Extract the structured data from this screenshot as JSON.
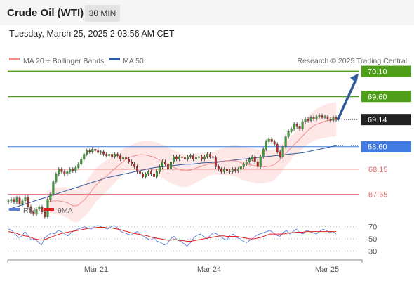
{
  "header": {
    "title": "Crude Oil (WTI)",
    "timeframe": "30 MIN"
  },
  "datetime": "Tuesday, March 25, 2025 2:03:56 AM CET",
  "legend": [
    {
      "label": "MA 20 + Bollinger Bands",
      "color": "#f08c8c"
    },
    {
      "label": "MA 50",
      "color": "#2f5a9e"
    }
  ],
  "rsi_legend": [
    {
      "label": "RSI",
      "color": "#5b7fd9"
    },
    {
      "label": "9MA",
      "color": "#e02020"
    }
  ],
  "copyright": "Research © 2025 Trading Central",
  "colors": {
    "target": "#4f9e1a",
    "pivot": "#3f7be0",
    "support": "#e26b6b",
    "last": "#222222",
    "arrow": "#2f5a9e"
  },
  "chart_data": {
    "type": "candlestick",
    "instrument": "Crude Oil (WTI)",
    "interval": "30 MIN",
    "ylim": [
      67.35,
      70.15
    ],
    "x_ticks": [
      "Mar 21",
      "Mar 24",
      "Mar 25"
    ],
    "price_close": [
      67.52,
      67.55,
      67.5,
      67.58,
      67.45,
      67.52,
      67.6,
      67.4,
      67.3,
      67.25,
      67.35,
      67.4,
      67.3,
      67.2,
      67.55,
      67.65,
      67.9,
      68.05,
      68.15,
      68.1,
      68.05,
      68.1,
      68.15,
      68.12,
      68.18,
      68.25,
      68.35,
      68.45,
      68.52,
      68.5,
      68.55,
      68.52,
      68.48,
      68.5,
      68.45,
      68.42,
      68.45,
      68.4,
      68.45,
      68.42,
      68.35,
      68.38,
      68.35,
      68.3,
      68.25,
      68.2,
      68.1,
      68.05,
      68.0,
      68.05,
      68.1,
      68.05,
      68.0,
      68.1,
      68.2,
      68.3,
      68.25,
      68.15,
      68.3,
      68.4,
      68.35,
      68.4,
      68.38,
      68.35,
      68.4,
      68.42,
      68.35,
      68.38,
      68.4,
      68.35,
      68.4,
      68.45,
      68.4,
      68.38,
      68.2,
      68.15,
      68.1,
      68.15,
      68.12,
      68.1,
      68.15,
      68.12,
      68.15,
      68.2,
      68.25,
      68.3,
      68.35,
      68.4,
      68.3,
      68.2,
      68.4,
      68.55,
      68.7,
      68.75,
      68.7,
      68.65,
      68.5,
      68.4,
      68.6,
      68.8,
      68.9,
      68.95,
      69.05,
      69.0,
      68.95,
      69.1,
      69.15,
      69.12,
      69.18,
      69.15,
      69.2,
      69.22,
      69.18,
      69.2,
      69.15,
      69.12,
      69.18,
      69.14
    ],
    "price_ma20": [
      67.5,
      67.51,
      67.52,
      67.52,
      67.52,
      67.51,
      67.5,
      67.48,
      67.45,
      67.42,
      67.42,
      67.45,
      67.5,
      67.55,
      67.62,
      67.7,
      67.78,
      67.85,
      67.9,
      67.95,
      68.0,
      68.05,
      68.1,
      68.15,
      68.2,
      68.25,
      68.3,
      68.35,
      68.38,
      68.4,
      68.42,
      68.43,
      68.44,
      68.44,
      68.43,
      68.42,
      68.4,
      68.38,
      68.35,
      68.32,
      68.29,
      68.26,
      68.23,
      68.2,
      68.17,
      68.15,
      68.13,
      68.12,
      68.12,
      68.13,
      68.15,
      68.17,
      68.19,
      68.21,
      68.23,
      68.25,
      68.26,
      68.27,
      68.28,
      68.29,
      68.3,
      68.31,
      68.32,
      68.32,
      68.32,
      68.31,
      68.29,
      68.27,
      68.25,
      68.24,
      68.23,
      68.22,
      68.21,
      68.2,
      68.2,
      68.2,
      68.21,
      68.22,
      68.25,
      68.3,
      68.35,
      68.42,
      68.48,
      68.54,
      68.6,
      68.66,
      68.72,
      68.78,
      68.84,
      68.9,
      68.96,
      69.0,
      69.04,
      69.06,
      69.08,
      69.1,
      69.12,
      69.13,
      69.14,
      69.15
    ],
    "price_ma50": [
      67.35,
      67.38,
      67.41,
      67.44,
      67.47,
      67.5,
      67.53,
      67.56,
      67.59,
      67.62,
      67.65,
      67.68,
      67.71,
      67.74,
      67.77,
      67.8,
      67.83,
      67.86,
      67.89,
      67.92,
      67.95,
      67.98,
      68.0,
      68.02,
      68.04,
      68.06,
      68.08,
      68.1,
      68.12,
      68.14,
      68.16,
      68.18,
      68.19,
      68.2,
      68.21,
      68.22,
      68.23,
      68.24,
      68.25,
      68.25,
      68.26,
      68.27,
      68.28,
      68.28,
      68.29,
      68.3,
      68.31,
      68.32,
      68.33,
      68.34,
      68.35,
      68.36,
      68.37,
      68.38,
      68.39,
      68.4,
      68.41,
      68.42,
      68.43,
      68.44,
      68.45,
      68.46,
      68.47,
      68.48,
      68.5,
      68.52,
      68.54,
      68.56,
      68.58,
      68.6,
      68.62
    ],
    "levels": [
      {
        "value": 70.1,
        "label": "70.10",
        "kind": "target"
      },
      {
        "value": 69.6,
        "label": "69.60",
        "kind": "target"
      },
      {
        "value": 69.14,
        "label": "69.14",
        "kind": "last"
      },
      {
        "value": 68.6,
        "label": "68.60",
        "kind": "pivot"
      },
      {
        "value": 68.15,
        "label": "68.15",
        "kind": "support"
      },
      {
        "value": 67.65,
        "label": "67.65",
        "kind": "support"
      }
    ],
    "rsi": {
      "ylim": [
        20,
        80
      ],
      "ticks": [
        "70",
        "50",
        "30"
      ],
      "reference_levels": [
        70,
        50,
        30
      ],
      "values": [
        66,
        64,
        58,
        52,
        54,
        62,
        55,
        48,
        50,
        45,
        40,
        52,
        56,
        60,
        58,
        64,
        62,
        58,
        55,
        60,
        64,
        66,
        68,
        70,
        68,
        66,
        70,
        72,
        70,
        68,
        66,
        70,
        72,
        68,
        62,
        60,
        58,
        56,
        60,
        62,
        56,
        54,
        50,
        48,
        52,
        46,
        44,
        40,
        42,
        50,
        54,
        48,
        46,
        42,
        38,
        44,
        52,
        56,
        58,
        54,
        50,
        56,
        60,
        58,
        54,
        50,
        48,
        56,
        58,
        52,
        50,
        46,
        44,
        48,
        52,
        56,
        58,
        60,
        62,
        64,
        60,
        56,
        54,
        60,
        64,
        58,
        62,
        66,
        60,
        58,
        64,
        62,
        60,
        58,
        62,
        66,
        64,
        60,
        62,
        58
      ],
      "ma9": [
        62,
        61,
        60,
        58,
        56,
        55,
        54,
        52,
        50,
        49,
        48,
        49,
        51,
        53,
        55,
        57,
        59,
        60,
        61,
        62,
        63,
        64,
        65,
        66,
        67,
        68,
        68,
        69,
        69,
        69,
        68,
        68,
        67,
        66,
        65,
        63,
        62,
        60,
        59,
        58,
        57,
        56,
        55,
        53,
        52,
        51,
        50,
        49,
        48,
        48,
        49,
        48,
        47,
        47,
        46,
        46,
        47,
        48,
        49,
        50,
        51,
        52,
        53,
        54,
        55,
        55,
        54,
        54,
        54,
        54,
        53,
        52,
        51,
        50,
        50,
        51,
        52,
        54,
        56,
        58,
        58,
        58,
        58,
        58,
        59,
        60,
        60,
        61,
        61,
        61,
        62,
        62,
        62,
        62,
        62,
        62,
        62,
        62,
        62,
        62
      ]
    }
  }
}
